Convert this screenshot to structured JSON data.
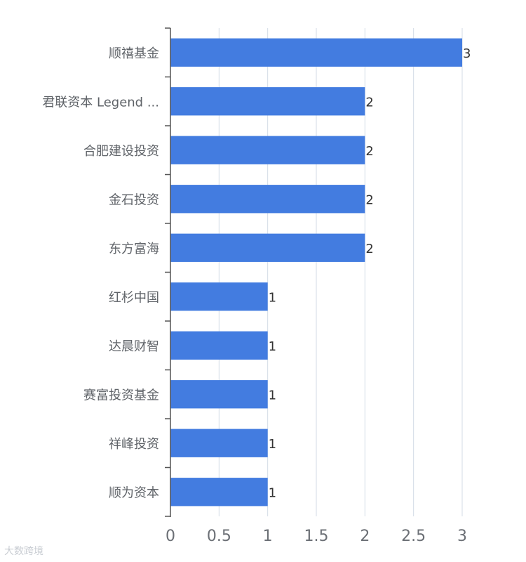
{
  "chart_data": {
    "type": "bar",
    "orientation": "horizontal",
    "categories": [
      "顺禧基金",
      "君联资本 Legend ...",
      "合肥建设投资",
      "金石投资",
      "东方富海",
      "红杉中国",
      "达晨财智",
      "赛富投资基金",
      "祥峰投资",
      "顺为资本"
    ],
    "values": [
      3,
      2,
      2,
      2,
      2,
      1,
      1,
      1,
      1,
      1
    ],
    "xticks": [
      "0",
      "0.5",
      "1",
      "1.5",
      "2",
      "2.5",
      "3"
    ],
    "xlim": [
      0,
      3
    ],
    "grid": true,
    "bar_color": "#437ce0",
    "title": "",
    "xlabel": "",
    "ylabel": ""
  },
  "watermark": "大数跨境"
}
